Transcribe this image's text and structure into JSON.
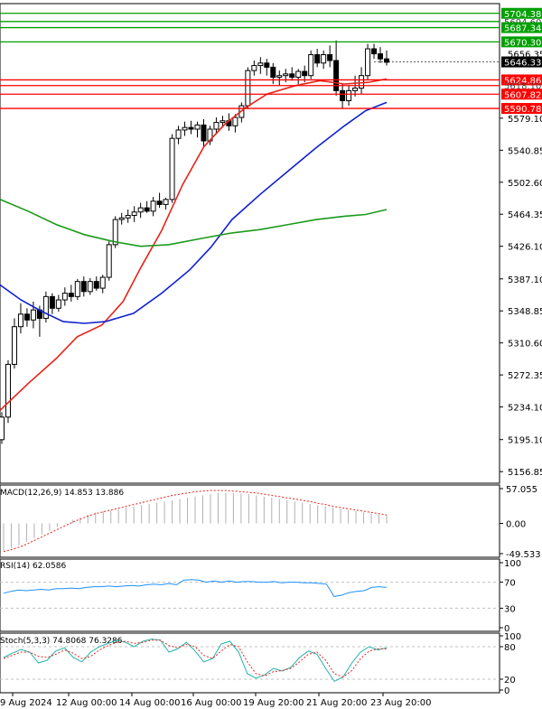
{
  "chart_data": [
    {
      "type": "candlestick",
      "title": "",
      "price_axis_ticks": [
        "5579.10",
        "5540.85",
        "5502.60",
        "5464.35",
        "5426.10",
        "5387.10",
        "5348.85",
        "5310.60",
        "5272.35",
        "5234.10",
        "5195.10",
        "5156.85"
      ],
      "price_axis_values": [
        5579.1,
        5540.85,
        5502.6,
        5464.35,
        5426.1,
        5387.1,
        5348.85,
        5310.6,
        5272.35,
        5234.1,
        5195.1,
        5156.85
      ],
      "ylim": [
        5143,
        5716
      ],
      "time_axis_labels": [
        "9 Aug 2024",
        "12 Aug 00:00",
        "14 Aug 00:00",
        "16 Aug 00:00",
        "19 Aug 20:00",
        "21 Aug 20:00",
        "23 Aug 20:00"
      ],
      "current_price": "5646.33",
      "resistance_levels": [
        {
          "label": "5704.38",
          "value": 5704.38,
          "color": "#00a000"
        },
        {
          "label": "5694.60",
          "value": 5694.6,
          "color": "#00a000"
        },
        {
          "label": "5687.34",
          "value": 5687.34,
          "color": "#00a000"
        },
        {
          "label": "5670.30",
          "value": 5670.3,
          "color": "#00a000"
        }
      ],
      "support_levels": [
        {
          "label": "5624.86",
          "value": 5624.86,
          "color": "#ff0000"
        },
        {
          "label": "5618.10",
          "value": 5618.1,
          "color": "#ff0000"
        },
        {
          "label": "5607.82",
          "value": 5607.82,
          "color": "#ff0000"
        },
        {
          "label": "5590.78",
          "value": 5590.78,
          "color": "#ff0000"
        }
      ],
      "other_price_labels": [
        "5656.35"
      ],
      "candles": [
        [
          5195,
          5228,
          5190,
          5222
        ],
        [
          5222,
          5290,
          5215,
          5285
        ],
        [
          5285,
          5340,
          5280,
          5330
        ],
        [
          5330,
          5358,
          5322,
          5345
        ],
        [
          5345,
          5352,
          5330,
          5338
        ],
        [
          5338,
          5360,
          5328,
          5350
        ],
        [
          5350,
          5355,
          5318,
          5340
        ],
        [
          5340,
          5372,
          5335,
          5366
        ],
        [
          5366,
          5370,
          5345,
          5352
        ],
        [
          5352,
          5368,
          5348,
          5362
        ],
        [
          5362,
          5377,
          5355,
          5370
        ],
        [
          5370,
          5380,
          5360,
          5366
        ],
        [
          5366,
          5387,
          5362,
          5384
        ],
        [
          5384,
          5390,
          5366,
          5372
        ],
        [
          5372,
          5388,
          5368,
          5384
        ],
        [
          5384,
          5390,
          5373,
          5376
        ],
        [
          5376,
          5392,
          5370,
          5389
        ],
        [
          5389,
          5432,
          5385,
          5428
        ],
        [
          5428,
          5462,
          5424,
          5458
        ],
        [
          5458,
          5466,
          5452,
          5460
        ],
        [
          5460,
          5470,
          5454,
          5463
        ],
        [
          5463,
          5474,
          5455,
          5467
        ],
        [
          5467,
          5478,
          5460,
          5472
        ],
        [
          5472,
          5480,
          5466,
          5468
        ],
        [
          5468,
          5485,
          5462,
          5480
        ],
        [
          5480,
          5490,
          5472,
          5476
        ],
        [
          5476,
          5484,
          5470,
          5482
        ],
        [
          5482,
          5560,
          5478,
          5555
        ],
        [
          5555,
          5570,
          5548,
          5565
        ],
        [
          5565,
          5575,
          5558,
          5568
        ],
        [
          5568,
          5576,
          5560,
          5566
        ],
        [
          5566,
          5575,
          5556,
          5571
        ],
        [
          5571,
          5578,
          5545,
          5552
        ],
        [
          5552,
          5570,
          5547,
          5566
        ],
        [
          5566,
          5580,
          5560,
          5574
        ],
        [
          5574,
          5582,
          5568,
          5576
        ],
        [
          5576,
          5585,
          5564,
          5570
        ],
        [
          5570,
          5584,
          5562,
          5580
        ],
        [
          5580,
          5598,
          5574,
          5594
        ],
        [
          5594,
          5640,
          5590,
          5636
        ],
        [
          5636,
          5648,
          5630,
          5642
        ],
        [
          5642,
          5652,
          5632,
          5645
        ],
        [
          5645,
          5650,
          5630,
          5640
        ],
        [
          5640,
          5645,
          5620,
          5628
        ],
        [
          5628,
          5636,
          5618,
          5630
        ],
        [
          5630,
          5638,
          5622,
          5632
        ],
        [
          5632,
          5640,
          5624,
          5628
        ],
        [
          5628,
          5638,
          5620,
          5635
        ],
        [
          5635,
          5642,
          5622,
          5630
        ],
        [
          5630,
          5660,
          5626,
          5655
        ],
        [
          5655,
          5662,
          5640,
          5645
        ],
        [
          5645,
          5660,
          5638,
          5655
        ],
        [
          5655,
          5666,
          5640,
          5648
        ],
        [
          5648,
          5672,
          5606,
          5612
        ],
        [
          5612,
          5620,
          5590,
          5600
        ],
        [
          5600,
          5618,
          5594,
          5612
        ],
        [
          5612,
          5630,
          5605,
          5615
        ],
        [
          5615,
          5640,
          5608,
          5630
        ],
        [
          5630,
          5668,
          5625,
          5662
        ],
        [
          5662,
          5668,
          5650,
          5656
        ],
        [
          5656,
          5664,
          5645,
          5650
        ],
        [
          5650,
          5660,
          5642,
          5646
        ]
      ],
      "moving_averages": [
        {
          "color": "#e8231a",
          "values": [
            [
              0,
              5230
            ],
            [
              8,
              5262
            ],
            [
              16,
              5292
            ],
            [
              22,
              5318
            ],
            [
              29,
              5332
            ],
            [
              35,
              5360
            ],
            [
              40,
              5400
            ],
            [
              46,
              5445
            ],
            [
              52,
              5500
            ],
            [
              58,
              5545
            ],
            [
              64,
              5572
            ],
            [
              70,
              5592
            ],
            [
              76,
              5608
            ],
            [
              84,
              5618
            ],
            [
              91,
              5624
            ],
            [
              98,
              5620
            ],
            [
              105,
              5622
            ],
            [
              110,
              5626
            ]
          ]
        },
        {
          "color": "#1020d0",
          "values": [
            [
              0,
              5380
            ],
            [
              6,
              5362
            ],
            [
              12,
              5348
            ],
            [
              18,
              5336
            ],
            [
              24,
              5334
            ],
            [
              30,
              5336
            ],
            [
              38,
              5346
            ],
            [
              46,
              5370
            ],
            [
              54,
              5398
            ],
            [
              60,
              5425
            ],
            [
              66,
              5458
            ],
            [
              74,
              5488
            ],
            [
              82,
              5516
            ],
            [
              90,
              5544
            ],
            [
              98,
              5570
            ],
            [
              104,
              5588
            ],
            [
              110,
              5598
            ]
          ]
        },
        {
          "color": "#1a9a1a",
          "values": [
            [
              0,
              5482
            ],
            [
              8,
              5468
            ],
            [
              16,
              5452
            ],
            [
              24,
              5440
            ],
            [
              32,
              5432
            ],
            [
              40,
              5426
            ],
            [
              48,
              5428
            ],
            [
              58,
              5436
            ],
            [
              66,
              5442
            ],
            [
              74,
              5446
            ],
            [
              82,
              5452
            ],
            [
              90,
              5458
            ],
            [
              98,
              5462
            ],
            [
              104,
              5464
            ],
            [
              110,
              5470
            ]
          ]
        }
      ]
    },
    {
      "type": "bar",
      "label": "MACD(12,26,9) 14.853 13.886",
      "axis_labels": [
        "57.055",
        "0.00",
        "-49.533"
      ],
      "ylim": [
        -49.533,
        57.055
      ],
      "histogram": [
        -44,
        -40,
        -36,
        -30,
        -24,
        -18,
        -12,
        -6,
        0,
        6,
        10,
        14,
        18,
        20,
        22,
        24,
        26,
        28,
        30,
        32,
        34,
        36,
        38,
        40,
        42,
        44,
        46,
        48,
        50,
        50,
        50,
        49,
        48,
        46,
        44,
        42,
        40,
        38,
        36,
        34,
        32,
        30,
        28,
        26,
        24,
        22,
        20,
        18,
        16,
        14,
        14
      ],
      "signal": [
        -46,
        -43,
        -39,
        -34,
        -28,
        -22,
        -16,
        -10,
        -4,
        2,
        7,
        12,
        16,
        19,
        22,
        25,
        28,
        31,
        34,
        37,
        40,
        43,
        46,
        48,
        50,
        52,
        53,
        54,
        54,
        54,
        53,
        52,
        51,
        50,
        48,
        46,
        44,
        42,
        40,
        38,
        36,
        33,
        31,
        28,
        26,
        24,
        22,
        20,
        18,
        16,
        14
      ]
    },
    {
      "type": "line",
      "label": "RSI(14) 62.0586",
      "axis_labels": [
        "100",
        "70",
        "30",
        "0"
      ],
      "ylim": [
        0,
        100
      ],
      "values": [
        53,
        56,
        58,
        57,
        58,
        59,
        58,
        60,
        60,
        61,
        60,
        62,
        63,
        63,
        64,
        63,
        64,
        65,
        64,
        66,
        67,
        66,
        68,
        66,
        73,
        74,
        73,
        70,
        72,
        70,
        72,
        70,
        71,
        71,
        70,
        70,
        71,
        69,
        70,
        70,
        69,
        69,
        68,
        67,
        48,
        50,
        54,
        56,
        57,
        62,
        63,
        62
      ]
    },
    {
      "type": "line",
      "label": "Stoch(5,3,3) 74.8068 76.3286",
      "axis_labels": [
        "100",
        "80",
        "20",
        "0"
      ],
      "ylim": [
        0,
        100
      ],
      "k": [
        60,
        68,
        75,
        70,
        50,
        55,
        72,
        78,
        60,
        52,
        70,
        80,
        86,
        92,
        88,
        80,
        90,
        94,
        92,
        70,
        76,
        88,
        72,
        52,
        58,
        85,
        90,
        70,
        30,
        22,
        28,
        40,
        35,
        42,
        60,
        72,
        66,
        40,
        16,
        24,
        50,
        70,
        80,
        74,
        78
      ],
      "d": [
        58,
        64,
        70,
        70,
        62,
        60,
        66,
        74,
        68,
        58,
        62,
        74,
        82,
        88,
        90,
        86,
        88,
        92,
        92,
        82,
        78,
        84,
        80,
        64,
        58,
        72,
        84,
        80,
        52,
        30,
        26,
        34,
        36,
        40,
        52,
        66,
        70,
        55,
        30,
        24,
        36,
        58,
        72,
        76,
        76
      ]
    }
  ]
}
